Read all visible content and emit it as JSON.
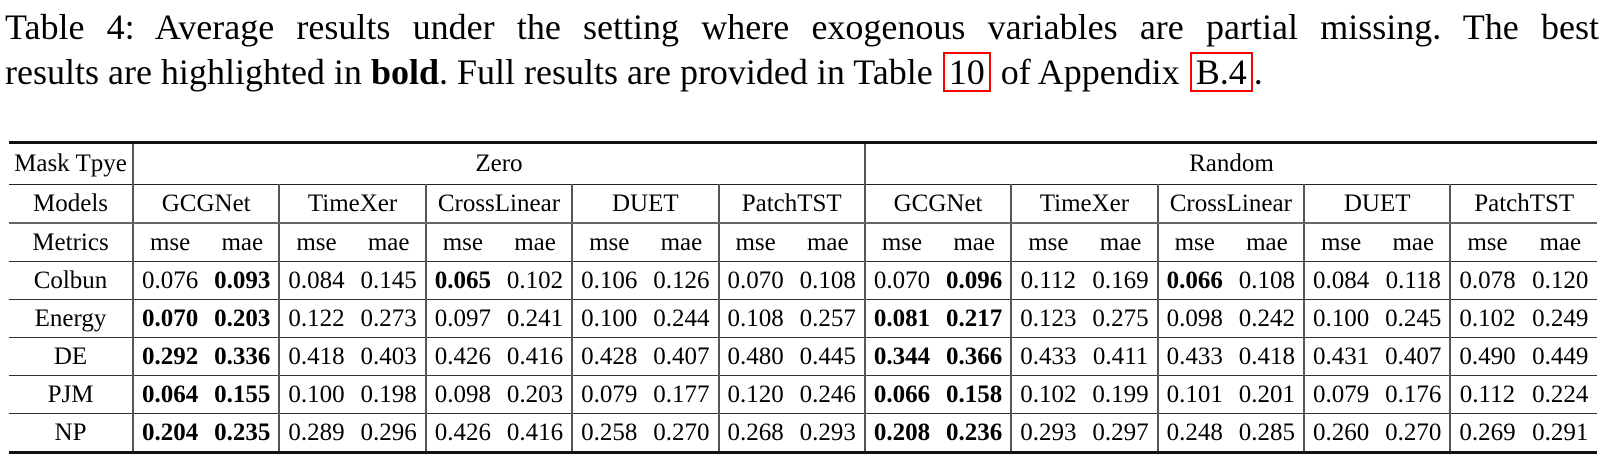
{
  "caption": {
    "line1": "Table 4: Average results under the setting where exogenous variables are partial missing. The best",
    "line2_pre": "results are highlighted in ",
    "bold_word": "bold",
    "line2_mid": ". Full results are provided in Table ",
    "table_ref": "10",
    "line2_mid2": " of Appendix ",
    "appendix_ref": "B.4",
    "line2_end": "."
  },
  "colors": {
    "ref_box_red": "#ff0000",
    "rule_black": "#111111",
    "separator_gray": "#555555"
  },
  "table": {
    "corner_labels": {
      "mask_type": "Mask Tpye",
      "models": "Models",
      "metrics": "Metrics"
    },
    "mask_types": [
      "Zero",
      "Random"
    ],
    "models": [
      "GCGNet",
      "TimeXer",
      "CrossLinear",
      "DUET",
      "PatchTST"
    ],
    "metrics": [
      "mse",
      "mae"
    ],
    "rows": [
      {
        "label": "Colbun",
        "cells": [
          {
            "v": "0.076",
            "b": false
          },
          {
            "v": "0.093",
            "b": true
          },
          {
            "v": "0.084",
            "b": false
          },
          {
            "v": "0.145",
            "b": false
          },
          {
            "v": "0.065",
            "b": true
          },
          {
            "v": "0.102",
            "b": false
          },
          {
            "v": "0.106",
            "b": false
          },
          {
            "v": "0.126",
            "b": false
          },
          {
            "v": "0.070",
            "b": false
          },
          {
            "v": "0.108",
            "b": false
          },
          {
            "v": "0.070",
            "b": false
          },
          {
            "v": "0.096",
            "b": true
          },
          {
            "v": "0.112",
            "b": false
          },
          {
            "v": "0.169",
            "b": false
          },
          {
            "v": "0.066",
            "b": true
          },
          {
            "v": "0.108",
            "b": false
          },
          {
            "v": "0.084",
            "b": false
          },
          {
            "v": "0.118",
            "b": false
          },
          {
            "v": "0.078",
            "b": false
          },
          {
            "v": "0.120",
            "b": false
          }
        ]
      },
      {
        "label": "Energy",
        "cells": [
          {
            "v": "0.070",
            "b": true
          },
          {
            "v": "0.203",
            "b": true
          },
          {
            "v": "0.122",
            "b": false
          },
          {
            "v": "0.273",
            "b": false
          },
          {
            "v": "0.097",
            "b": false
          },
          {
            "v": "0.241",
            "b": false
          },
          {
            "v": "0.100",
            "b": false
          },
          {
            "v": "0.244",
            "b": false
          },
          {
            "v": "0.108",
            "b": false
          },
          {
            "v": "0.257",
            "b": false
          },
          {
            "v": "0.081",
            "b": true
          },
          {
            "v": "0.217",
            "b": true
          },
          {
            "v": "0.123",
            "b": false
          },
          {
            "v": "0.275",
            "b": false
          },
          {
            "v": "0.098",
            "b": false
          },
          {
            "v": "0.242",
            "b": false
          },
          {
            "v": "0.100",
            "b": false
          },
          {
            "v": "0.245",
            "b": false
          },
          {
            "v": "0.102",
            "b": false
          },
          {
            "v": "0.249",
            "b": false
          }
        ]
      },
      {
        "label": "DE",
        "cells": [
          {
            "v": "0.292",
            "b": true
          },
          {
            "v": "0.336",
            "b": true
          },
          {
            "v": "0.418",
            "b": false
          },
          {
            "v": "0.403",
            "b": false
          },
          {
            "v": "0.426",
            "b": false
          },
          {
            "v": "0.416",
            "b": false
          },
          {
            "v": "0.428",
            "b": false
          },
          {
            "v": "0.407",
            "b": false
          },
          {
            "v": "0.480",
            "b": false
          },
          {
            "v": "0.445",
            "b": false
          },
          {
            "v": "0.344",
            "b": true
          },
          {
            "v": "0.366",
            "b": true
          },
          {
            "v": "0.433",
            "b": false
          },
          {
            "v": "0.411",
            "b": false
          },
          {
            "v": "0.433",
            "b": false
          },
          {
            "v": "0.418",
            "b": false
          },
          {
            "v": "0.431",
            "b": false
          },
          {
            "v": "0.407",
            "b": false
          },
          {
            "v": "0.490",
            "b": false
          },
          {
            "v": "0.449",
            "b": false
          }
        ]
      },
      {
        "label": "PJM",
        "cells": [
          {
            "v": "0.064",
            "b": true
          },
          {
            "v": "0.155",
            "b": true
          },
          {
            "v": "0.100",
            "b": false
          },
          {
            "v": "0.198",
            "b": false
          },
          {
            "v": "0.098",
            "b": false
          },
          {
            "v": "0.203",
            "b": false
          },
          {
            "v": "0.079",
            "b": false
          },
          {
            "v": "0.177",
            "b": false
          },
          {
            "v": "0.120",
            "b": false
          },
          {
            "v": "0.246",
            "b": false
          },
          {
            "v": "0.066",
            "b": true
          },
          {
            "v": "0.158",
            "b": true
          },
          {
            "v": "0.102",
            "b": false
          },
          {
            "v": "0.199",
            "b": false
          },
          {
            "v": "0.101",
            "b": false
          },
          {
            "v": "0.201",
            "b": false
          },
          {
            "v": "0.079",
            "b": false
          },
          {
            "v": "0.176",
            "b": false
          },
          {
            "v": "0.112",
            "b": false
          },
          {
            "v": "0.224",
            "b": false
          }
        ]
      },
      {
        "label": "NP",
        "cells": [
          {
            "v": "0.204",
            "b": true
          },
          {
            "v": "0.235",
            "b": true
          },
          {
            "v": "0.289",
            "b": false
          },
          {
            "v": "0.296",
            "b": false
          },
          {
            "v": "0.426",
            "b": false
          },
          {
            "v": "0.416",
            "b": false
          },
          {
            "v": "0.258",
            "b": false
          },
          {
            "v": "0.270",
            "b": false
          },
          {
            "v": "0.268",
            "b": false
          },
          {
            "v": "0.293",
            "b": false
          },
          {
            "v": "0.208",
            "b": true
          },
          {
            "v": "0.236",
            "b": true
          },
          {
            "v": "0.293",
            "b": false
          },
          {
            "v": "0.297",
            "b": false
          },
          {
            "v": "0.248",
            "b": false
          },
          {
            "v": "0.285",
            "b": false
          },
          {
            "v": "0.260",
            "b": false
          },
          {
            "v": "0.270",
            "b": false
          },
          {
            "v": "0.269",
            "b": false
          },
          {
            "v": "0.291",
            "b": false
          }
        ]
      }
    ]
  }
}
